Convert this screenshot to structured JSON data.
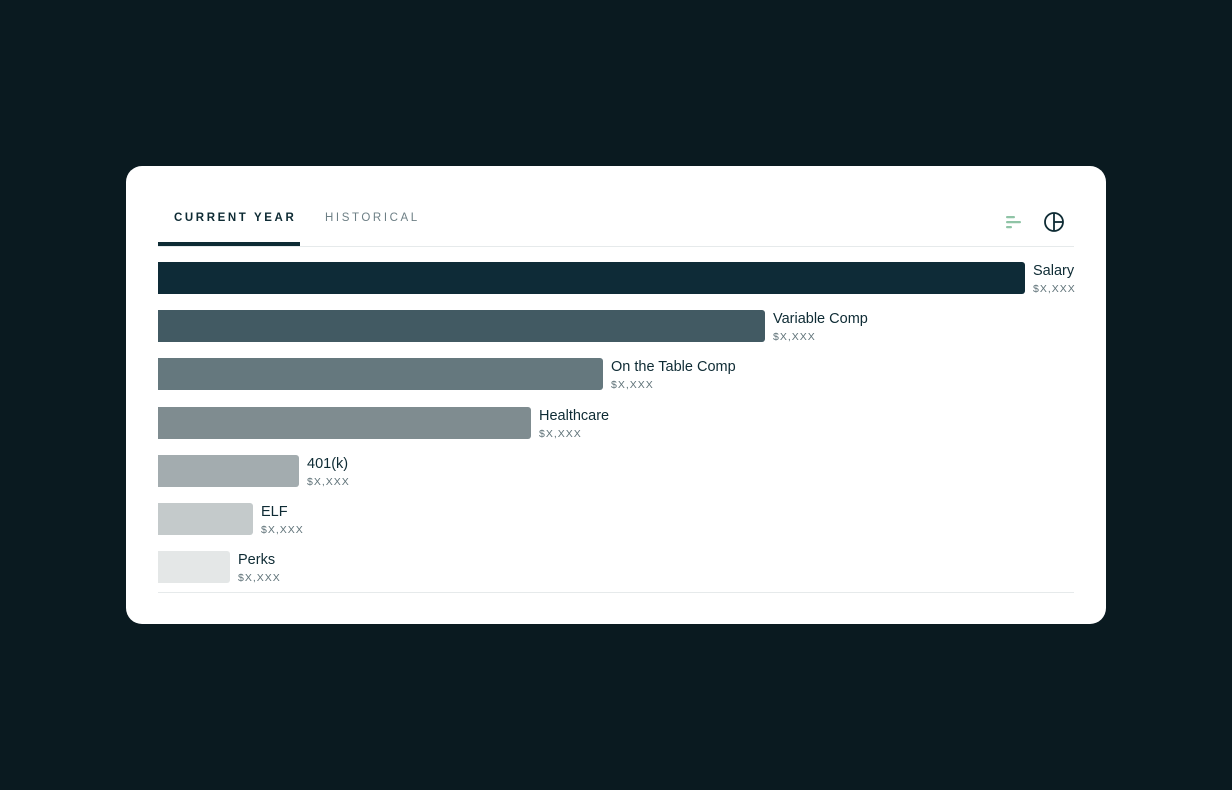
{
  "tabs": [
    {
      "label": "CURRENT YEAR",
      "active": true
    },
    {
      "label": "HISTORICAL",
      "active": false
    }
  ],
  "view_toggle": {
    "bar_view_icon": "bar-chart-icon",
    "pie_view_icon": "pie-chart-icon",
    "accent": "#8fc4a6"
  },
  "chart_data": {
    "type": "bar",
    "orientation": "horizontal",
    "categories": [
      "Salary",
      "Variable Comp",
      "On the Table Comp",
      "Healthcare",
      "401(k)",
      "ELF",
      "Perks"
    ],
    "value_labels": [
      "$X,XXX",
      "$X,XXX",
      "$X,XXX",
      "$X,XXX",
      "$X,XXX",
      "$X,XXX",
      "$X,XXX"
    ],
    "relative_values": [
      1.0,
      0.7,
      0.513,
      0.43,
      0.163,
      0.11,
      0.083
    ],
    "colors": [
      "#0e2b37",
      "#425a63",
      "#65787e",
      "#7f8c90",
      "#a3acaf",
      "#c4cacb",
      "#e4e7e7"
    ]
  }
}
